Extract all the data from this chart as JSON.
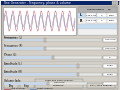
{
  "bg_color": "#d4d0c8",
  "title_bar_bg": "#0a246a",
  "title_bar_text": "#ffffff",
  "title_text": "Tone Generator - Frequency, phase & volume",
  "waveform_bg": "#ffffff",
  "waveform_color_l": "#c06070",
  "waveform_color_r": "#7090c0",
  "num_cycles": 10,
  "table_header_bg": "#808080",
  "table_row_l_bg": "#c8dcf0",
  "table_row_r_bg": "#f0f0f0",
  "slider_track_bg": "#ffffff",
  "slider_track_dark": "#a0a0a0",
  "value_box_bg": "#ffffff",
  "button_bg": "#d4d0c8",
  "border_light": "#ffffff",
  "border_dark": "#808080",
  "text_color": "#000000",
  "slider_labels": [
    "Frequency (L)",
    "Frequency (R)",
    "Phase (L)",
    "Amplitude (L)",
    "Amplitude (R)",
    "Volume fade"
  ],
  "slider_fills": [
    0.42,
    0.42,
    0.5,
    0.75,
    0.75,
    0.45
  ],
  "slider_values": [
    "440.0 Hz",
    "440.0 Hz",
    "0",
    "1.000",
    "1.000",
    ""
  ],
  "col_headers": [
    "",
    "Frequency",
    "Phase",
    "Vol"
  ],
  "table_rows": [
    [
      "L",
      "440.0 Hz",
      "0",
      "100%"
    ],
    [
      "R",
      "440.0 Hz",
      "0",
      "100%"
    ]
  ],
  "bottom_buttons": [
    "Play",
    "Stop"
  ],
  "legend_l": "Left channel",
  "legend_r": "Right channel"
}
